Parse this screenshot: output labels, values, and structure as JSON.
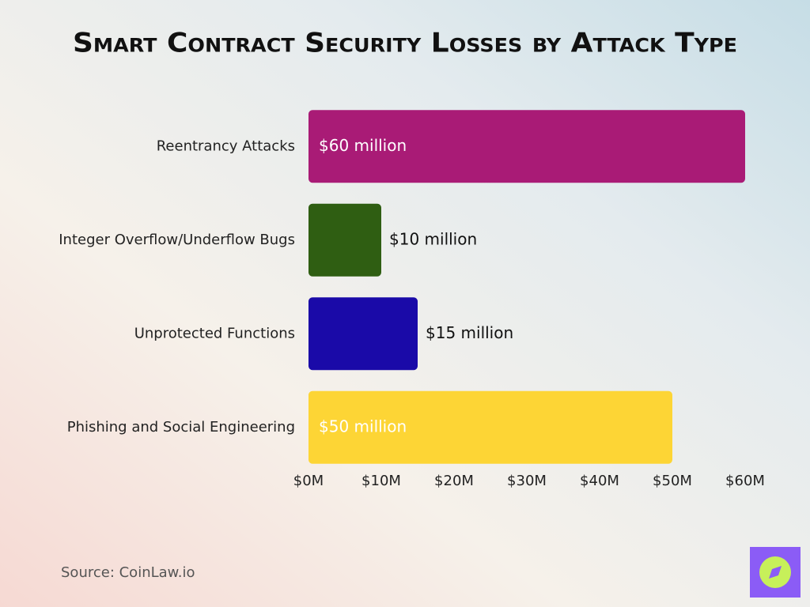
{
  "chart_data": {
    "type": "bar",
    "orientation": "horizontal",
    "title": "Smart Contract Security Losses by Attack Type",
    "categories": [
      "Reentrancy Attacks",
      "Integer Overflow/Underflow Bugs",
      "Unprotected Functions",
      "Phishing and Social Engineering"
    ],
    "values": [
      60,
      10,
      15,
      50
    ],
    "value_labels": [
      "$60 million",
      "$10 million",
      "$15 million",
      "$50 million"
    ],
    "colors": [
      "#a91b76",
      "#2f5e12",
      "#1a0aa8",
      "#fdd535"
    ],
    "xlim": [
      0,
      60
    ],
    "xticks": [
      {
        "value": 0,
        "label": "$0M"
      },
      {
        "value": 10,
        "label": "$10M"
      },
      {
        "value": 20,
        "label": "$20M"
      },
      {
        "value": 30,
        "label": "$30M"
      },
      {
        "value": 40,
        "label": "$40M"
      },
      {
        "value": 50,
        "label": "$50M"
      },
      {
        "value": 60,
        "label": "$60M"
      }
    ],
    "grid": false,
    "source": "Source: CoinLaw.io"
  }
}
